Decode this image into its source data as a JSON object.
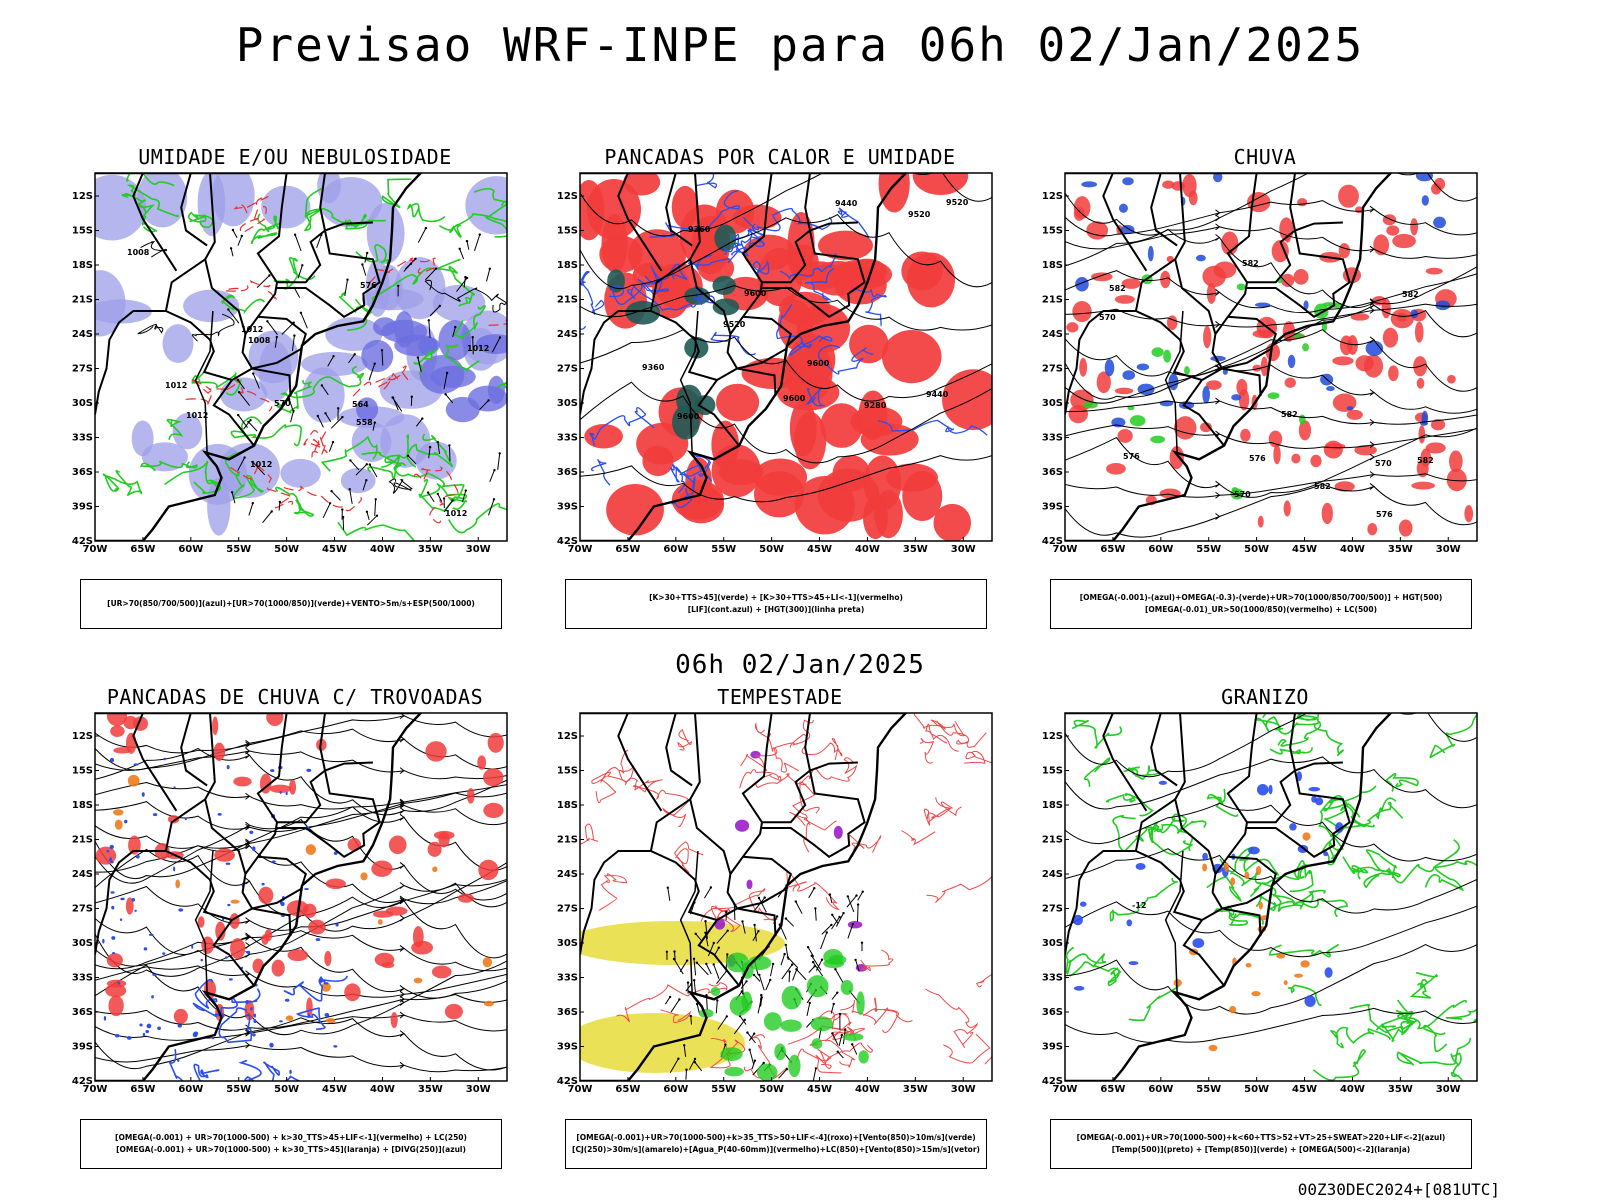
{
  "header": {
    "title": "Previsao WRF-INPE  para 06h 02/Jan/2025",
    "subtitle": "06h 02/Jan/2025",
    "footer": "00Z30DEC2024+[081UTC]"
  },
  "axes": {
    "lat_ticks": [
      "12S",
      "15S",
      "18S",
      "21S",
      "24S",
      "27S",
      "30S",
      "33S",
      "36S",
      "39S",
      "42S"
    ],
    "lon_ticks": [
      "70W",
      "65W",
      "60W",
      "55W",
      "50W",
      "45W",
      "40W",
      "35W",
      "30W"
    ]
  },
  "panels": [
    {
      "title": "UMIDADE E/OU NEBULOSIDADE",
      "legend": [
        "[UR>70(850/700/500)](azul)+[UR>70(1000/850)](verde)+VENTO>5m/s+ESP(500/1000)"
      ],
      "contour_labels": [
        "1012",
        "1012",
        "1012",
        "1008",
        "1012",
        "1008",
        "1012",
        "1012",
        "576",
        "570",
        "558",
        "564"
      ],
      "colors": {
        "fill": "#9d9ee8",
        "fill_dark": "#6c6ee0",
        "contour1": "#22cc22",
        "contour2": "#e83030",
        "contour3": "#000000"
      }
    },
    {
      "title": "PANCADAS POR CALOR E UMIDADE",
      "legend": [
        "[K>30+TTS>45](verde) + [K>30+TTS>45+LI<-1](vermelho)",
        "[LIF](cont.azul) + [HGT(300)](linha preta)"
      ],
      "contour_labels": [
        "9600",
        "9600",
        "9600",
        "9600",
        "9520",
        "9520",
        "9520",
        "9440",
        "9440",
        "9360",
        "9280",
        "9360"
      ],
      "colors": {
        "fill": "#f23c3c",
        "fill_dark": "#1f5a55",
        "contour1": "#2a4ef0",
        "contour2": "#000000",
        "contour3": "#000000"
      }
    },
    {
      "title": "CHUVA",
      "legend": [
        "[OMEGA(-0.001)-(azul)+OMEGA(-0.3)-(verde)+UR>70(1000/850/700/500)] + HGT(500)",
        "[OMEGA(-0.01)_UR>50(1000/850)(vermelho) + LC(500)"
      ],
      "contour_labels": [
        "582",
        "582",
        "582",
        "582",
        "576",
        "576",
        "576",
        "570",
        "570",
        "570",
        "582",
        "582"
      ],
      "colors": {
        "fill": "#f23c3c",
        "fill_dark": "#1f4ad8",
        "contour1": "#22cc22",
        "contour2": "#000000",
        "contour3": "#000000"
      }
    },
    {
      "title": "PANCADAS DE CHUVA C/ TROVOADAS",
      "legend": [
        "[OMEGA(-0.001) + UR>70(1000-500) + k>30_TTS>45+LIF<-1](vermelho) + LC(250)",
        "[OMEGA(-0.001) + UR>70(1000-500) + k>30_TTS>45](laranja) + [DIVG(250)](azul)"
      ],
      "contour_labels": [],
      "colors": {
        "fill": "#f23c3c",
        "fill_dark": "#f07a1a",
        "contour1": "#2a4ef0",
        "contour2": "#000000",
        "contour3": "#000000"
      }
    },
    {
      "title": "TEMPESTADE",
      "legend": [
        "[OMEGA(-0.001)+UR>70(1000-500)+k>35_TTS>50+LIF<-4](roxo)+[Vento(850)>10m/s](verde)",
        "[CJ(250)>30m/s](amarelo)+[Agua_P(40-60mm)](vermelho)+LC(850)+[Vento(850)>15m/s](vetor)"
      ],
      "contour_labels": [],
      "colors": {
        "fill": "#e8dc3a",
        "fill_dark": "#9a1ec8",
        "contour1": "#f04848",
        "contour2": "#22cc22",
        "contour3": "#000000"
      }
    },
    {
      "title": "GRANIZO",
      "legend": [
        "[OMEGA(-0.001)+UR>70(1000-500)+k<60+TTS>52+VT>25+SWEAT>220+LIF<-2](azul)",
        "[Temp(500)](preto) + [Temp(850)](verde) + [OMEGA(500)<-2](laranja)"
      ],
      "contour_labels": [
        "-12"
      ],
      "colors": {
        "fill": "#2a4ef0",
        "fill_dark": "#f07a1a",
        "contour1": "#22cc22",
        "contour2": "#000000",
        "contour3": "#000000"
      }
    }
  ]
}
